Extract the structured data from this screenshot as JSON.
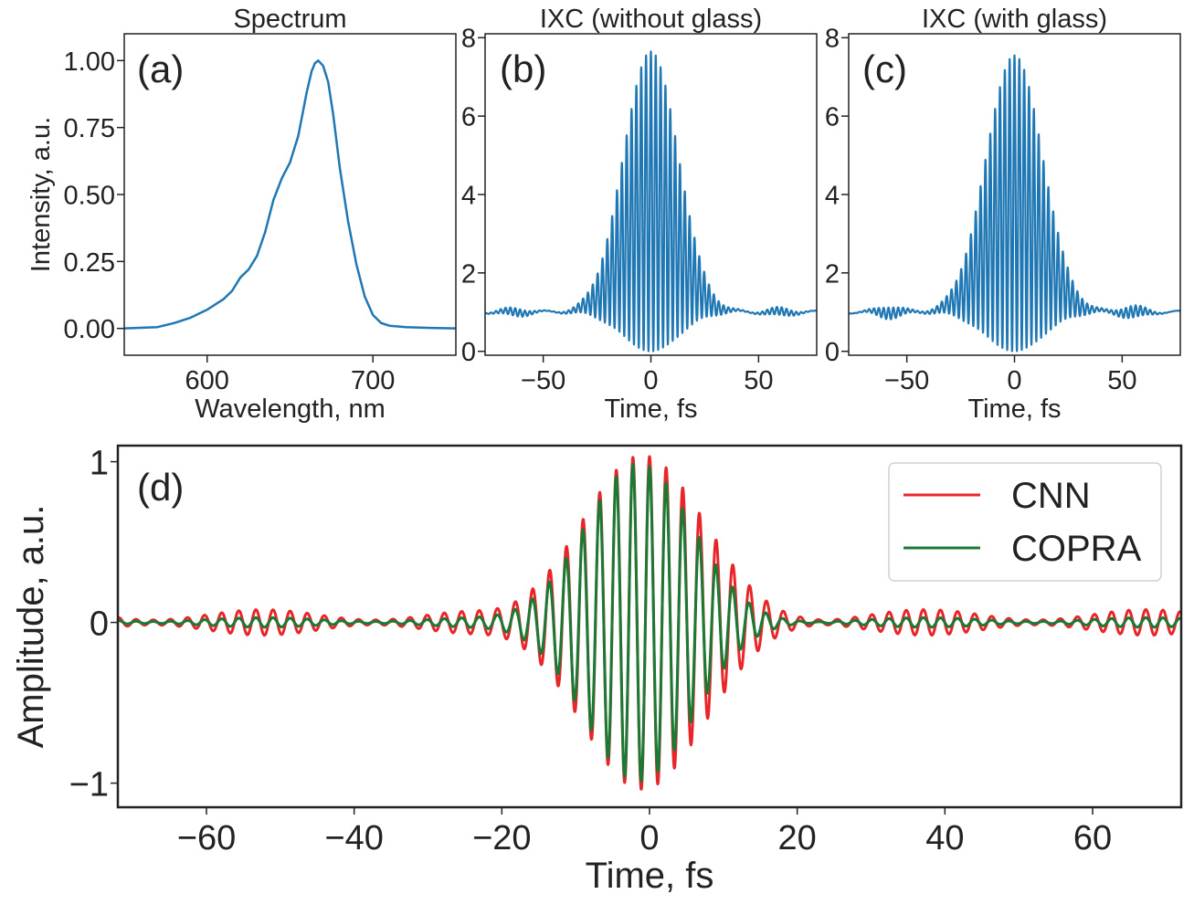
{
  "colors": {
    "blue": "#1f77b4",
    "cnn": "#e8262a",
    "copra": "#1a7a35",
    "axis": "#222222"
  },
  "chart_data": [
    {
      "id": "a",
      "type": "line",
      "title": "Spectrum",
      "panel_label": "(a)",
      "xlabel": "Wavelength, nm",
      "ylabel": "Intensity, a.u.",
      "xlim": [
        550,
        750
      ],
      "ylim": [
        -0.1,
        1.1
      ],
      "xticks": [
        600,
        700
      ],
      "xtick_labels": [
        "600",
        "700"
      ],
      "yticks": [
        0,
        0.25,
        0.5,
        0.75,
        1.0
      ],
      "ytick_labels": [
        "0.00",
        "0.25",
        "0.50",
        "0.75",
        "1.00"
      ],
      "series": [
        {
          "name": "spectrum",
          "color": "#1f77b4",
          "x": [
            550,
            570,
            580,
            590,
            600,
            605,
            610,
            615,
            620,
            625,
            630,
            635,
            640,
            645,
            650,
            655,
            660,
            663,
            665,
            667,
            670,
            673,
            676,
            680,
            685,
            690,
            695,
            700,
            705,
            710,
            720,
            735,
            750
          ],
          "y": [
            0.0,
            0.005,
            0.02,
            0.04,
            0.07,
            0.09,
            0.11,
            0.14,
            0.19,
            0.22,
            0.27,
            0.36,
            0.48,
            0.56,
            0.62,
            0.72,
            0.88,
            0.96,
            0.99,
            1.0,
            0.98,
            0.92,
            0.8,
            0.6,
            0.4,
            0.24,
            0.12,
            0.05,
            0.02,
            0.01,
            0.005,
            0.002,
            0.0
          ]
        }
      ]
    },
    {
      "id": "b",
      "type": "line",
      "title": "IXC (without glass)",
      "panel_label": "(b)",
      "xlabel": "Time, fs",
      "ylabel": "",
      "xlim": [
        -77,
        77
      ],
      "ylim": [
        -0.1,
        8.1
      ],
      "xticks": [
        -50,
        0,
        50
      ],
      "xtick_labels": [
        "−50",
        "0",
        "50"
      ],
      "yticks": [
        0,
        2,
        4,
        6,
        8
      ],
      "ytick_labels": [
        "0",
        "2",
        "4",
        "6",
        "8"
      ],
      "series": [
        {
          "name": "IXC",
          "color": "#1f77b4",
          "period_fs": 2.25,
          "peak": 7.65,
          "envelope_fwhm_fs": 30,
          "baseline": 1.0,
          "side_ripple_centers_fs": [
            -63,
            60
          ],
          "side_ripple_amp": 0.1
        }
      ]
    },
    {
      "id": "c",
      "type": "line",
      "title": "IXC (with glass)",
      "panel_label": "(c)",
      "xlabel": "Time, fs",
      "ylabel": "",
      "xlim": [
        -77,
        77
      ],
      "ylim": [
        -0.1,
        8.1
      ],
      "xticks": [
        -50,
        0,
        50
      ],
      "xtick_labels": [
        "−50",
        "0",
        "50"
      ],
      "yticks": [
        0,
        2,
        4,
        6,
        8
      ],
      "ytick_labels": [
        "0",
        "2",
        "4",
        "6",
        "8"
      ],
      "series": [
        {
          "name": "IXC",
          "color": "#1f77b4",
          "period_fs": 2.25,
          "peak": 7.55,
          "envelope_fwhm_fs": 31,
          "baseline": 1.0,
          "side_ripple_centers_fs": [
            -58,
            55
          ],
          "side_ripple_amp": 0.15
        }
      ]
    },
    {
      "id": "d",
      "type": "line",
      "title": "",
      "panel_label": "(d)",
      "xlabel": "Time, fs",
      "ylabel": "Amplitude, a.u.",
      "xlim": [
        -72,
        72
      ],
      "ylim": [
        -1.15,
        1.1
      ],
      "xticks": [
        -60,
        -40,
        -20,
        0,
        20,
        40,
        60
      ],
      "xtick_labels": [
        "−60",
        "−40",
        "−20",
        "0",
        "20",
        "40",
        "60"
      ],
      "yticks": [
        -1,
        0,
        1
      ],
      "ytick_labels": [
        "−1",
        "0",
        "1"
      ],
      "legend": {
        "position": "top-right",
        "entries": [
          "CNN",
          "COPRA"
        ]
      },
      "series": [
        {
          "name": "CNN",
          "color": "#e8262a",
          "period_fs": 2.25,
          "peak": 1.04,
          "envelope_fwhm_fs": 19,
          "center_fs": -1,
          "ripple_amp": 0.08,
          "chirp": 0.0
        },
        {
          "name": "COPRA",
          "color": "#1a7a35",
          "period_fs": 2.25,
          "peak": 0.99,
          "envelope_fwhm_fs": 17,
          "center_fs": -1.5,
          "ripple_amp": 0.03,
          "chirp": 0.001
        }
      ]
    }
  ]
}
